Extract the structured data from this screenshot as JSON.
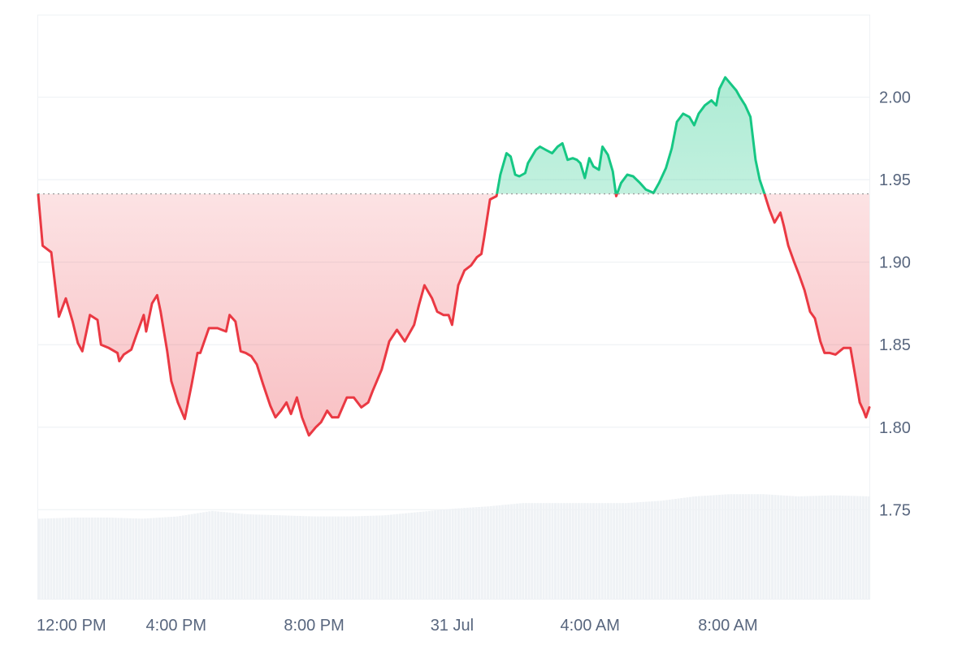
{
  "chart_data": {
    "type": "area",
    "baseline": 1.9414,
    "x_ticks": [
      {
        "hour": 0,
        "label": "12:00 PM"
      },
      {
        "hour": 4,
        "label": "4:00 PM"
      },
      {
        "hour": 8,
        "label": "8:00 PM"
      },
      {
        "hour": 12,
        "label": "31 Jul"
      },
      {
        "hour": 16,
        "label": "4:00 AM"
      },
      {
        "hour": 20,
        "label": "8:00 AM"
      }
    ],
    "xlim": [
      0,
      24.1
    ],
    "ylim": [
      1.696,
      2.05
    ],
    "y_ticks": [
      {
        "value": 2.0,
        "label": "2.00"
      },
      {
        "value": 1.95,
        "label": "1.95"
      },
      {
        "value": 1.9,
        "label": "1.90"
      },
      {
        "value": 1.85,
        "label": "1.85"
      },
      {
        "value": 1.8,
        "label": "1.80"
      },
      {
        "value": 1.75,
        "label": "1.75"
      }
    ],
    "grid": true,
    "colors": {
      "above": "#16c784",
      "below": "#ea3943",
      "baseline": "#a0a0a0",
      "grid": "#eff2f5",
      "volume": "#eff2f5"
    },
    "price": [
      [
        0.0,
        1.941
      ],
      [
        0.13,
        1.91
      ],
      [
        0.38,
        1.906
      ],
      [
        0.55,
        1.876
      ],
      [
        0.6,
        1.867
      ],
      [
        0.8,
        1.878
      ],
      [
        1.0,
        1.864
      ],
      [
        1.15,
        1.851
      ],
      [
        1.28,
        1.846
      ],
      [
        1.5,
        1.868
      ],
      [
        1.72,
        1.865
      ],
      [
        1.82,
        1.85
      ],
      [
        2.05,
        1.848
      ],
      [
        2.3,
        1.845
      ],
      [
        2.35,
        1.84
      ],
      [
        2.48,
        1.844
      ],
      [
        2.7,
        1.847
      ],
      [
        2.85,
        1.856
      ],
      [
        3.06,
        1.868
      ],
      [
        3.13,
        1.858
      ],
      [
        3.3,
        1.875
      ],
      [
        3.45,
        1.88
      ],
      [
        3.55,
        1.87
      ],
      [
        3.74,
        1.846
      ],
      [
        3.86,
        1.828
      ],
      [
        4.05,
        1.815
      ],
      [
        4.25,
        1.805
      ],
      [
        4.45,
        1.826
      ],
      [
        4.62,
        1.845
      ],
      [
        4.7,
        1.845
      ],
      [
        4.95,
        1.86
      ],
      [
        5.2,
        1.86
      ],
      [
        5.45,
        1.858
      ],
      [
        5.55,
        1.868
      ],
      [
        5.72,
        1.864
      ],
      [
        5.87,
        1.846
      ],
      [
        6.02,
        1.845
      ],
      [
        6.18,
        1.843
      ],
      [
        6.34,
        1.838
      ],
      [
        6.52,
        1.826
      ],
      [
        6.73,
        1.813
      ],
      [
        6.88,
        1.806
      ],
      [
        7.04,
        1.81
      ],
      [
        7.2,
        1.815
      ],
      [
        7.33,
        1.808
      ],
      [
        7.5,
        1.818
      ],
      [
        7.65,
        1.806
      ],
      [
        7.85,
        1.795
      ],
      [
        8.05,
        1.8
      ],
      [
        8.2,
        1.803
      ],
      [
        8.38,
        1.81
      ],
      [
        8.52,
        1.806
      ],
      [
        8.7,
        1.806
      ],
      [
        8.95,
        1.818
      ],
      [
        9.15,
        1.818
      ],
      [
        9.37,
        1.812
      ],
      [
        9.57,
        1.815
      ],
      [
        9.7,
        1.822
      ],
      [
        9.8,
        1.827
      ],
      [
        9.96,
        1.835
      ],
      [
        10.18,
        1.852
      ],
      [
        10.4,
        1.859
      ],
      [
        10.63,
        1.852
      ],
      [
        10.9,
        1.862
      ],
      [
        11.04,
        1.874
      ],
      [
        11.2,
        1.886
      ],
      [
        11.42,
        1.878
      ],
      [
        11.57,
        1.87
      ],
      [
        11.75,
        1.868
      ],
      [
        11.9,
        1.868
      ],
      [
        12.0,
        1.862
      ],
      [
        12.18,
        1.886
      ],
      [
        12.36,
        1.895
      ],
      [
        12.55,
        1.898
      ],
      [
        12.72,
        1.903
      ],
      [
        12.85,
        1.905
      ],
      [
        12.93,
        1.915
      ],
      [
        13.1,
        1.938
      ],
      [
        13.29,
        1.94
      ],
      [
        13.4,
        1.953
      ],
      [
        13.58,
        1.966
      ],
      [
        13.7,
        1.964
      ],
      [
        13.83,
        1.953
      ],
      [
        13.95,
        1.952
      ],
      [
        14.12,
        1.954
      ],
      [
        14.2,
        1.96
      ],
      [
        14.43,
        1.968
      ],
      [
        14.55,
        1.97
      ],
      [
        14.72,
        1.968
      ],
      [
        14.9,
        1.966
      ],
      [
        15.06,
        1.97
      ],
      [
        15.2,
        1.972
      ],
      [
        15.35,
        1.962
      ],
      [
        15.5,
        1.963
      ],
      [
        15.62,
        1.962
      ],
      [
        15.72,
        1.96
      ],
      [
        15.85,
        1.951
      ],
      [
        15.98,
        1.963
      ],
      [
        16.1,
        1.958
      ],
      [
        16.26,
        1.956
      ],
      [
        16.36,
        1.97
      ],
      [
        16.52,
        1.965
      ],
      [
        16.66,
        1.955
      ],
      [
        16.76,
        1.94
      ],
      [
        16.9,
        1.948
      ],
      [
        17.08,
        1.953
      ],
      [
        17.25,
        1.952
      ],
      [
        17.45,
        1.948
      ],
      [
        17.62,
        1.944
      ],
      [
        17.84,
        1.942
      ],
      [
        18.0,
        1.948
      ],
      [
        18.2,
        1.957
      ],
      [
        18.37,
        1.969
      ],
      [
        18.52,
        1.985
      ],
      [
        18.7,
        1.99
      ],
      [
        18.88,
        1.988
      ],
      [
        19.02,
        1.983
      ],
      [
        19.15,
        1.99
      ],
      [
        19.33,
        1.995
      ],
      [
        19.52,
        1.998
      ],
      [
        19.66,
        1.995
      ],
      [
        19.75,
        2.005
      ],
      [
        19.92,
        2.012
      ],
      [
        20.08,
        2.008
      ],
      [
        20.24,
        2.004
      ],
      [
        20.35,
        2.0
      ],
      [
        20.5,
        1.995
      ],
      [
        20.65,
        1.988
      ],
      [
        20.8,
        1.962
      ],
      [
        20.92,
        1.95
      ],
      [
        21.05,
        1.942
      ],
      [
        21.2,
        1.932
      ],
      [
        21.35,
        1.924
      ],
      [
        21.52,
        1.93
      ],
      [
        21.62,
        1.922
      ],
      [
        21.75,
        1.91
      ],
      [
        21.92,
        1.9
      ],
      [
        22.05,
        1.893
      ],
      [
        22.22,
        1.883
      ],
      [
        22.38,
        1.87
      ],
      [
        22.52,
        1.866
      ],
      [
        22.68,
        1.852
      ],
      [
        22.8,
        1.845
      ],
      [
        22.95,
        1.845
      ],
      [
        23.12,
        1.844
      ],
      [
        23.35,
        1.848
      ],
      [
        23.55,
        1.848
      ],
      [
        23.7,
        1.83
      ],
      [
        23.82,
        1.815
      ],
      [
        23.93,
        1.81
      ],
      [
        24.0,
        1.806
      ],
      [
        24.1,
        1.812
      ]
    ],
    "volume": [
      [
        0.0,
        0.72
      ],
      [
        1.0,
        0.73
      ],
      [
        2.0,
        0.73
      ],
      [
        3.0,
        0.72
      ],
      [
        4.0,
        0.74
      ],
      [
        5.0,
        0.79
      ],
      [
        6.0,
        0.76
      ],
      [
        7.0,
        0.75
      ],
      [
        8.0,
        0.74
      ],
      [
        9.0,
        0.74
      ],
      [
        10.0,
        0.75
      ],
      [
        11.0,
        0.78
      ],
      [
        12.0,
        0.81
      ],
      [
        13.0,
        0.83
      ],
      [
        14.0,
        0.86
      ],
      [
        15.0,
        0.86
      ],
      [
        16.0,
        0.86
      ],
      [
        17.0,
        0.86
      ],
      [
        18.0,
        0.88
      ],
      [
        19.0,
        0.92
      ],
      [
        20.0,
        0.94
      ],
      [
        21.0,
        0.94
      ],
      [
        22.0,
        0.92
      ],
      [
        23.0,
        0.93
      ],
      [
        24.1,
        0.92
      ]
    ]
  }
}
